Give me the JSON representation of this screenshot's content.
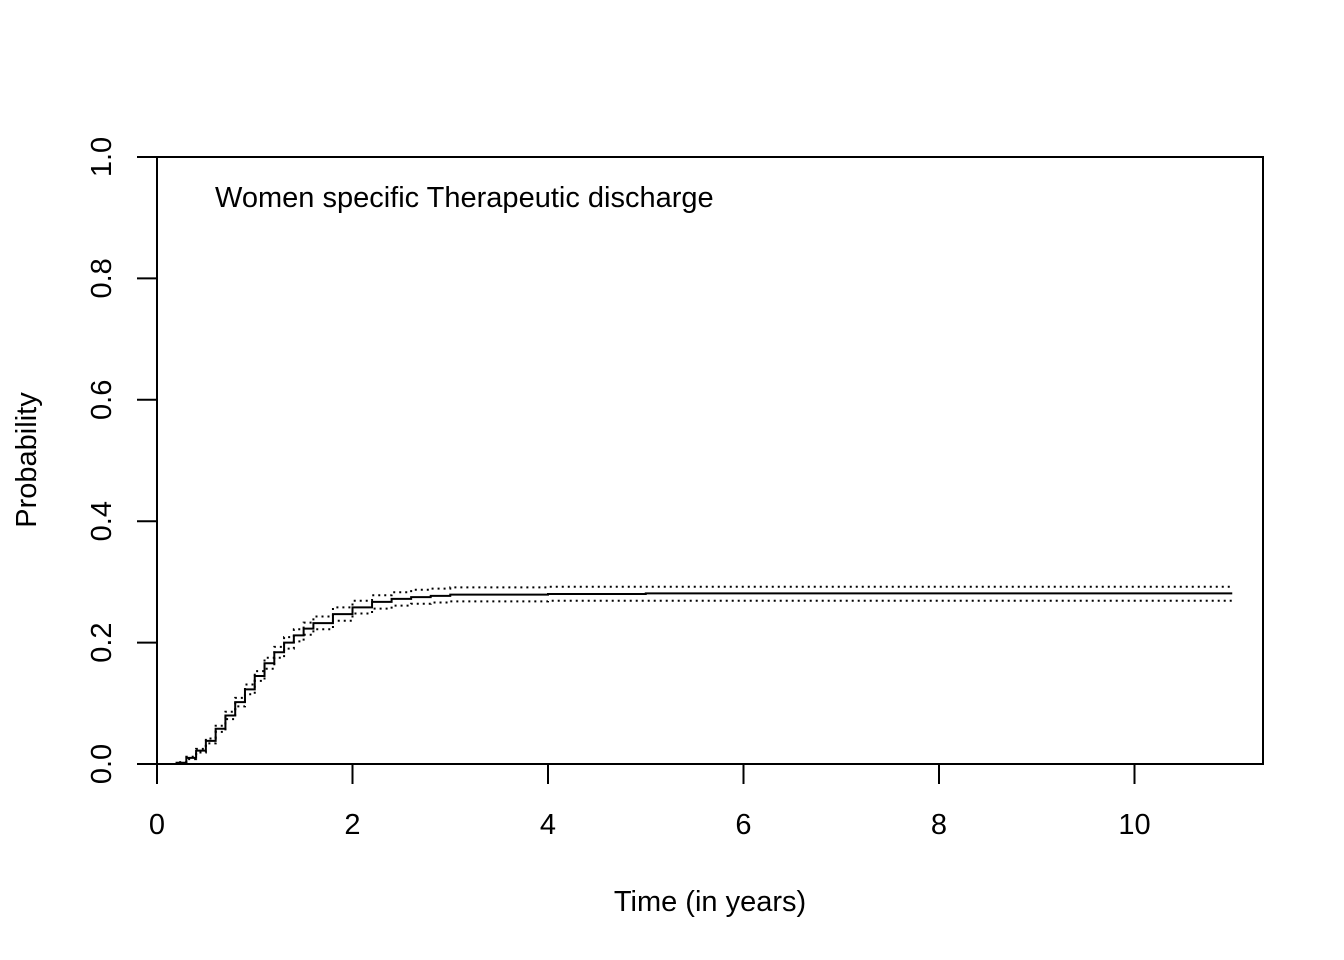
{
  "chart_data": {
    "type": "line",
    "title": "",
    "annotation": "Women specific Therapeutic discharge",
    "xlabel": "Time (in years)",
    "ylabel": "Probability",
    "xlim": [
      0,
      11.3
    ],
    "ylim": [
      0,
      1
    ],
    "x_ticks": [
      0,
      2,
      4,
      6,
      8,
      10
    ],
    "x_tick_labels": [
      "0",
      "2",
      "4",
      "6",
      "8",
      "10"
    ],
    "y_ticks": [
      0,
      0.2,
      0.4,
      0.6,
      0.8,
      1.0
    ],
    "y_tick_labels": [
      "0.0",
      "0.2",
      "0.4",
      "0.6",
      "0.8",
      "1.0"
    ],
    "grid": false,
    "legend": "none",
    "series": [
      {
        "style": "solid",
        "x": [
          0,
          0.1,
          0.2,
          0.3,
          0.4,
          0.5,
          0.6,
          0.7,
          0.8,
          0.9,
          1.0,
          1.1,
          1.2,
          1.3,
          1.4,
          1.5,
          1.6,
          1.8,
          2.0,
          2.2,
          2.4,
          2.6,
          2.8,
          3.0,
          4.0,
          5.0,
          6.0,
          8.0,
          10.0,
          11.0
        ],
        "y": [
          0,
          0,
          0.002,
          0.01,
          0.022,
          0.038,
          0.058,
          0.08,
          0.102,
          0.123,
          0.145,
          0.166,
          0.184,
          0.2,
          0.212,
          0.223,
          0.232,
          0.247,
          0.258,
          0.267,
          0.272,
          0.275,
          0.277,
          0.279,
          0.28,
          0.281,
          0.281,
          0.281,
          0.281,
          0.281
        ]
      },
      {
        "style": "dotted",
        "x": [
          0,
          0.1,
          0.2,
          0.3,
          0.4,
          0.5,
          0.6,
          0.7,
          0.8,
          0.9,
          1.0,
          1.1,
          1.2,
          1.3,
          1.4,
          1.5,
          1.6,
          1.8,
          2.0,
          2.2,
          2.4,
          2.6,
          2.8,
          3.0,
          4.0,
          5.0,
          6.0,
          8.0,
          10.0,
          11.0
        ],
        "y": [
          0,
          0,
          0.003,
          0.012,
          0.025,
          0.042,
          0.063,
          0.086,
          0.109,
          0.131,
          0.153,
          0.175,
          0.193,
          0.209,
          0.222,
          0.233,
          0.243,
          0.258,
          0.269,
          0.278,
          0.283,
          0.287,
          0.289,
          0.291,
          0.292,
          0.292,
          0.292,
          0.292,
          0.292,
          0.292
        ]
      },
      {
        "style": "dotted",
        "x": [
          0,
          0.1,
          0.2,
          0.3,
          0.4,
          0.5,
          0.6,
          0.7,
          0.8,
          0.9,
          1.0,
          1.1,
          1.2,
          1.3,
          1.4,
          1.5,
          1.6,
          1.8,
          2.0,
          2.2,
          2.4,
          2.6,
          2.8,
          3.0,
          4.0,
          5.0,
          6.0,
          8.0,
          10.0,
          11.0
        ],
        "y": [
          0,
          0,
          0.001,
          0.008,
          0.019,
          0.034,
          0.053,
          0.074,
          0.095,
          0.115,
          0.137,
          0.157,
          0.175,
          0.19,
          0.202,
          0.213,
          0.222,
          0.236,
          0.248,
          0.256,
          0.261,
          0.264,
          0.266,
          0.268,
          0.269,
          0.269,
          0.269,
          0.269,
          0.269,
          0.269
        ]
      }
    ]
  }
}
